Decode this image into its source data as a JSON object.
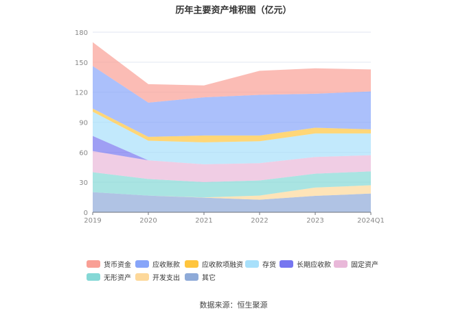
{
  "chart_data": {
    "type": "area",
    "stacked": true,
    "title": "历年主要资产堆积图（亿元）",
    "xlabel": "",
    "ylabel": "",
    "categories": [
      "2019",
      "2020",
      "2021",
      "2022",
      "2023",
      "2024Q1"
    ],
    "ylim": [
      0,
      180
    ],
    "yticks": [
      0,
      30,
      60,
      90,
      120,
      150,
      180
    ],
    "grid": true,
    "legend_position": "bottom",
    "series": [
      {
        "name": "其它",
        "color": "#8eaad8",
        "values": [
          20.1,
          16.7,
          14.6,
          12.6,
          16.4,
          18.7
        ]
      },
      {
        "name": "开发支出",
        "color": "#fdd89a",
        "values": [
          0,
          0,
          0.3,
          4.1,
          8.3,
          8.3
        ]
      },
      {
        "name": "无形资产",
        "color": "#85d8d6",
        "values": [
          19.9,
          16.6,
          15.3,
          15.1,
          13.9,
          13.9
        ]
      },
      {
        "name": "固定资产",
        "color": "#e9b8d9",
        "values": [
          21.2,
          18.6,
          17.8,
          17.3,
          16.7,
          16.2
        ]
      },
      {
        "name": "长期应收款",
        "color": "#7676f0",
        "values": [
          15.1,
          0,
          0,
          0,
          0,
          0
        ]
      },
      {
        "name": "存货",
        "color": "#a8e0fb",
        "values": [
          24.2,
          19.6,
          21.9,
          21.9,
          23.5,
          21.7
        ]
      },
      {
        "name": "应收款项融资",
        "color": "#ffc53d",
        "values": [
          3.2,
          3.9,
          6.8,
          5.7,
          5.7,
          4.1
        ]
      },
      {
        "name": "应收账款",
        "color": "#87a5f9",
        "values": [
          42.5,
          34.2,
          38.2,
          40.7,
          34.0,
          37.9
        ]
      },
      {
        "name": "货币资金",
        "color": "#f99f95",
        "values": [
          23.8,
          18.5,
          11.9,
          24.0,
          25.4,
          22.0
        ]
      }
    ],
    "legend_order": [
      "货币资金",
      "应收账款",
      "应收款项融资",
      "存货",
      "长期应收款",
      "固定资产",
      "无形资产",
      "开发支出",
      "其它"
    ]
  },
  "source": "数据来源：恒生聚源"
}
